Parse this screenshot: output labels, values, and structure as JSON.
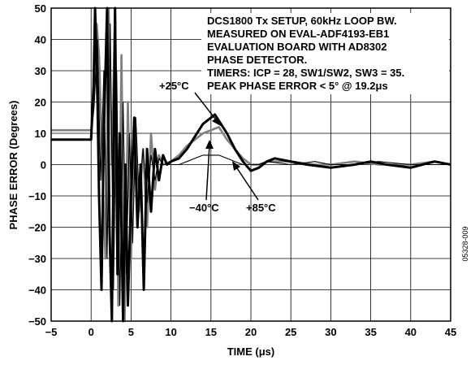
{
  "chart_data": {
    "type": "line",
    "xlabel": "TIME (μs)",
    "ylabel": "PHASE ERROR (Degrees)",
    "xlim": [
      -5,
      45
    ],
    "ylim": [
      -50,
      50
    ],
    "xticks": [
      -5,
      0,
      5,
      10,
      15,
      20,
      25,
      30,
      35,
      40,
      45
    ],
    "yticks": [
      -50,
      -40,
      -30,
      -20,
      -10,
      0,
      10,
      20,
      30,
      40,
      50
    ],
    "xtick_labels": [
      "−5",
      "0",
      "5",
      "10",
      "15",
      "20",
      "25",
      "30",
      "35",
      "40",
      "45"
    ],
    "ytick_labels": [
      "−50",
      "−40",
      "−30",
      "−20",
      "−10",
      "0",
      "10",
      "20",
      "30",
      "40",
      "50"
    ],
    "grid": true,
    "annotation_lines": [
      "DCS1800 Tx SETUP, 60kHz LOOP BW.",
      "MEASURED ON EVAL-ADF4193-EB1",
      "EVALUATION BOARD WITH AD8302",
      "PHASE DETECTOR.",
      "TIMERS: ICP = 28, SW1/SW2, SW3 = 35.",
      "PEAK PHASE ERROR < 5° @ 19.2μs"
    ],
    "figure_id": "05328-009",
    "series": [
      {
        "name": "+25°C",
        "color": "#000000",
        "x": [
          -5,
          -3,
          -1,
          0,
          0.3,
          0.5,
          0.8,
          1.0,
          1.3,
          1.6,
          2.0,
          2.3,
          2.6,
          3.0,
          3.3,
          3.6,
          4.0,
          4.3,
          4.6,
          5.0,
          5.4,
          5.8,
          6.2,
          6.6,
          7.0,
          7.5,
          8.0,
          8.5,
          9.0,
          9.5,
          10,
          11,
          12,
          13,
          14,
          15,
          15.5,
          16,
          17,
          18,
          19,
          20,
          21,
          22,
          23,
          25,
          27,
          30,
          33,
          35,
          37,
          40,
          43,
          45
        ],
        "y": [
          8,
          8,
          8,
          8,
          25,
          50,
          20,
          -10,
          -40,
          10,
          50,
          -20,
          -50,
          50,
          -35,
          10,
          -50,
          0,
          -45,
          -10,
          15,
          -20,
          0,
          -40,
          5,
          -15,
          5,
          -5,
          3,
          0,
          1,
          2,
          5,
          9,
          13,
          15,
          16,
          14,
          10,
          5,
          1,
          -2,
          -1,
          1,
          2,
          1,
          0,
          -1,
          0,
          1,
          0,
          -1,
          1,
          0
        ]
      },
      {
        "name": "−40°C",
        "color": "#808080",
        "x": [
          -5,
          -3,
          -1,
          0,
          0.3,
          0.7,
          1.0,
          1.4,
          1.8,
          2.2,
          2.6,
          3.0,
          3.4,
          3.8,
          4.2,
          4.6,
          5.0,
          5.5,
          6.0,
          6.5,
          7.0,
          7.5,
          8.0,
          8.5,
          9.0,
          10,
          11,
          12,
          13,
          14,
          15,
          16,
          17,
          18,
          19,
          20,
          21,
          22,
          23,
          25,
          28,
          30,
          33,
          36,
          40,
          43,
          45
        ],
        "y": [
          11,
          11,
          11,
          11,
          18,
          45,
          35,
          0,
          -30,
          50,
          0,
          50,
          -45,
          35,
          -50,
          20,
          -30,
          15,
          -15,
          5,
          -20,
          10,
          -8,
          3,
          0,
          1,
          3,
          6,
          8,
          10,
          11,
          12,
          8,
          5,
          2,
          0,
          0,
          1,
          1,
          1,
          0,
          0,
          1,
          0,
          0,
          1,
          0
        ]
      },
      {
        "name": "+85°C",
        "color": "#000000",
        "x": [
          -5,
          -3,
          -1,
          0,
          0.4,
          0.8,
          1.2,
          1.6,
          2.0,
          2.4,
          2.8,
          3.2,
          3.6,
          4.0,
          4.4,
          4.8,
          5.2,
          5.6,
          6.0,
          6.5,
          7.0,
          7.5,
          8.0,
          8.5,
          9.0,
          10,
          11,
          12,
          13,
          14,
          15,
          16,
          17,
          18,
          19,
          20,
          21,
          22,
          25,
          28,
          30,
          33,
          36,
          40,
          43,
          45
        ],
        "y": [
          8,
          8,
          8,
          8,
          20,
          40,
          -5,
          30,
          -30,
          45,
          -40,
          30,
          -45,
          20,
          -35,
          10,
          -25,
          15,
          -10,
          5,
          -12,
          3,
          -5,
          2,
          0,
          0,
          0,
          1,
          2,
          3,
          3,
          3,
          2,
          1,
          0,
          0,
          0,
          1,
          0,
          1,
          0,
          0,
          1,
          0,
          0,
          0
        ]
      }
    ],
    "callouts": [
      {
        "label": "+25°C",
        "target_series": "+25°C"
      },
      {
        "label": "−40°C",
        "target_series": "−40°C"
      },
      {
        "label": "+85°C",
        "target_series": "+85°C"
      }
    ]
  }
}
